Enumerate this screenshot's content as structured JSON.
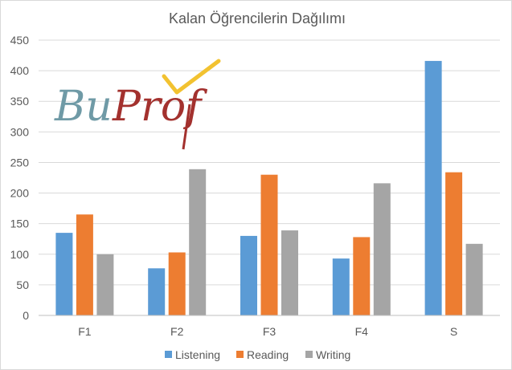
{
  "chart_data": {
    "type": "bar",
    "title": "Kalan Öğrencilerin Dağılımı",
    "categories": [
      "F1",
      "F2",
      "F3",
      "F4",
      "S"
    ],
    "series": [
      {
        "name": "Listening",
        "color": "#5b9bd5",
        "values": [
          135,
          77,
          130,
          93,
          416
        ]
      },
      {
        "name": "Reading",
        "color": "#ed7d31",
        "values": [
          165,
          103,
          230,
          128,
          234
        ]
      },
      {
        "name": "Writing",
        "color": "#a5a5a5",
        "values": [
          100,
          239,
          139,
          216,
          117
        ]
      }
    ],
    "ylim": [
      0,
      450
    ],
    "yticks": [
      "0",
      "50",
      "100",
      "150",
      "200",
      "250",
      "300",
      "350",
      "400",
      "450"
    ],
    "grid": true,
    "legend_position": "bottom"
  },
  "watermark": {
    "text": "BuProf",
    "icon": "checkmark-icon",
    "colors": {
      "bu": "#6f9aa6",
      "prof": "#a3312e",
      "check": "#f2c230"
    }
  }
}
